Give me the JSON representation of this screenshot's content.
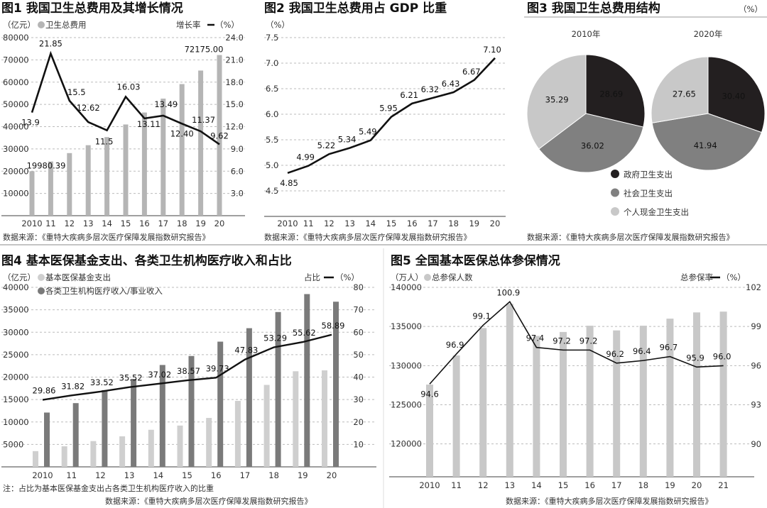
{
  "source_text": "数据来源：《重特大疾病多层次医疗保障发展指数研究报告》",
  "chart_data": [
    {
      "id": "fig1",
      "type": "bar+line",
      "title": "图1 我国卫生总费用及其增长情况",
      "left_unit": "（亿元）",
      "bar_legend": "卫生总费用",
      "line_legend": "增长率",
      "right_unit": "（%）",
      "categories": [
        "2010",
        "11",
        "12",
        "13",
        "14",
        "15",
        "16",
        "17",
        "18",
        "19",
        "20"
      ],
      "bar_values": [
        19980.39,
        24346,
        28119,
        31669,
        35312,
        40975,
        46345,
        52598,
        59122,
        65196,
        72175.0
      ],
      "bar_labels": {
        "0": "19980.39",
        "10": "72175.00"
      },
      "line_values": [
        13.9,
        21.85,
        15.5,
        12.62,
        11.5,
        16.03,
        13.11,
        13.49,
        12.4,
        11.37,
        9.62
      ],
      "line_labels": [
        "13.9",
        "21.85",
        "15.5",
        "12.62",
        "11.5",
        "16.03",
        "13.11",
        "13.49",
        "12.40",
        "11.37",
        "9.62"
      ],
      "left_ylim": [
        0,
        80000
      ],
      "left_ticks": [
        "10000",
        "20000",
        "30000",
        "40000",
        "50000",
        "60000",
        "70000",
        "80000"
      ],
      "right_ylim": [
        0,
        24
      ],
      "right_ticks": [
        "3.0",
        "6.0",
        "9.0",
        "12.0",
        "15.0",
        "18.0",
        "21.0",
        "24.0"
      ],
      "grid": true,
      "colors": {
        "bar": "#b5b5b5",
        "line": "#111111"
      }
    },
    {
      "id": "fig2",
      "type": "line",
      "title": "图2 我国卫生总费用占 GDP 比重",
      "ylabel": "（%）",
      "categories": [
        "2010",
        "11",
        "12",
        "13",
        "14",
        "15",
        "16",
        "17",
        "18",
        "19",
        "20"
      ],
      "values": [
        4.85,
        4.99,
        5.22,
        5.34,
        5.49,
        5.95,
        6.21,
        6.32,
        6.43,
        6.67,
        7.1
      ],
      "labels": [
        "4.85",
        "4.99",
        "5.22",
        "5.34",
        "5.49",
        "5.95",
        "6.21",
        "6.32",
        "6.43",
        "6.67",
        "7.10"
      ],
      "ylim": [
        4.0,
        7.5
      ],
      "ticks": [
        "4.5",
        "5.0",
        "5.5",
        "6.0",
        "6.5",
        "7.0",
        "7.5"
      ],
      "grid": true,
      "colors": {
        "line": "#111111"
      }
    },
    {
      "id": "fig3",
      "type": "pie",
      "title": "图3  我国卫生总费用结构",
      "unit": "（%）",
      "legend": [
        "政府卫生支出",
        "社会卫生支出",
        "个人现金卫生支出"
      ],
      "colors": [
        "#231f20",
        "#808080",
        "#c8c8c8"
      ],
      "pies": [
        {
          "label": "2010年",
          "values": [
            28.69,
            36.02,
            35.29
          ],
          "labels": [
            "28.69",
            "36.02",
            "35.29"
          ]
        },
        {
          "label": "2020年",
          "values": [
            30.4,
            41.94,
            27.65
          ],
          "labels": [
            "30.40",
            "41.94",
            "27.65"
          ]
        }
      ]
    },
    {
      "id": "fig4",
      "type": "grouped-bar+line",
      "title": "图4 基本医保基金支出、各类卫生机构医疗收入和占比",
      "left_unit": "（亿元）",
      "series": [
        {
          "name": "基本医保基金支出",
          "values": [
            3500,
            4580,
            5740,
            6800,
            8260,
            9200,
            10900,
            14700,
            18260,
            21300,
            21500
          ],
          "color": "#cfcfcf"
        },
        {
          "name": "各类卫生机构医疗收入/事业收入",
          "values": [
            12100,
            14200,
            17100,
            19600,
            22700,
            24700,
            27900,
            30900,
            34500,
            38500,
            36800
          ],
          "color": "#7a7a7a"
        }
      ],
      "line_legend": "占比",
      "right_unit": "（%）",
      "categories": [
        "2010",
        "11",
        "12",
        "13",
        "14",
        "15",
        "16",
        "17",
        "18",
        "19",
        "20"
      ],
      "line_values": [
        29.86,
        31.82,
        33.52,
        35.52,
        37.02,
        38.57,
        39.73,
        47.83,
        53.29,
        55.62,
        58.89
      ],
      "line_labels": [
        "29.86",
        "31.82",
        "33.52",
        "35.52",
        "37.02",
        "38.57",
        "39.73",
        "47.83",
        "53.29",
        "55.62",
        "58.89"
      ],
      "left_ylim": [
        0,
        40000
      ],
      "left_ticks": [
        "5000",
        "10000",
        "15000",
        "20000",
        "25000",
        "30000",
        "35000",
        "40000"
      ],
      "right_ylim": [
        0,
        80
      ],
      "right_ticks": [
        "10",
        "20",
        "30",
        "40",
        "50",
        "60",
        "70",
        "80"
      ],
      "note": "注：占比为基本医保基金支出占各类卫生机构医疗收入的比重",
      "grid": true
    },
    {
      "id": "fig5",
      "type": "bar+line",
      "title": "图5  全国基本医保总体参保情况",
      "left_unit": "（万人）",
      "bar_legend": "总参保人数",
      "line_legend": "总参保率",
      "right_unit": "（%）",
      "categories": [
        "2010",
        "11",
        "12",
        "13",
        "14",
        "15",
        "16",
        "17",
        "18",
        "19",
        "20",
        "21"
      ],
      "bar_values": [
        127580,
        131300,
        134800,
        137900,
        133800,
        134300,
        135100,
        134500,
        135100,
        136000,
        136800,
        136900
      ],
      "line_values": [
        94.6,
        96.9,
        99.1,
        100.9,
        97.4,
        97.2,
        97.2,
        96.2,
        96.4,
        96.7,
        95.9,
        96.0
      ],
      "line_labels": [
        "94.6",
        "96.9",
        "99.1",
        "100.9",
        "97.4",
        "97.2",
        "97.2",
        "96.2",
        "96.4",
        "96.7",
        "95.9",
        "96.0"
      ],
      "left_ylim": [
        115800,
        140000
      ],
      "left_ticks": [
        "120000",
        "125000",
        "130000",
        "135000",
        "140000"
      ],
      "right_ylim": [
        87.5,
        102
      ],
      "right_ticks": [
        "90",
        "93",
        "96",
        "99",
        "102"
      ],
      "grid": true,
      "colors": {
        "bar": "#c8c8c8",
        "line": "#111111"
      }
    }
  ]
}
